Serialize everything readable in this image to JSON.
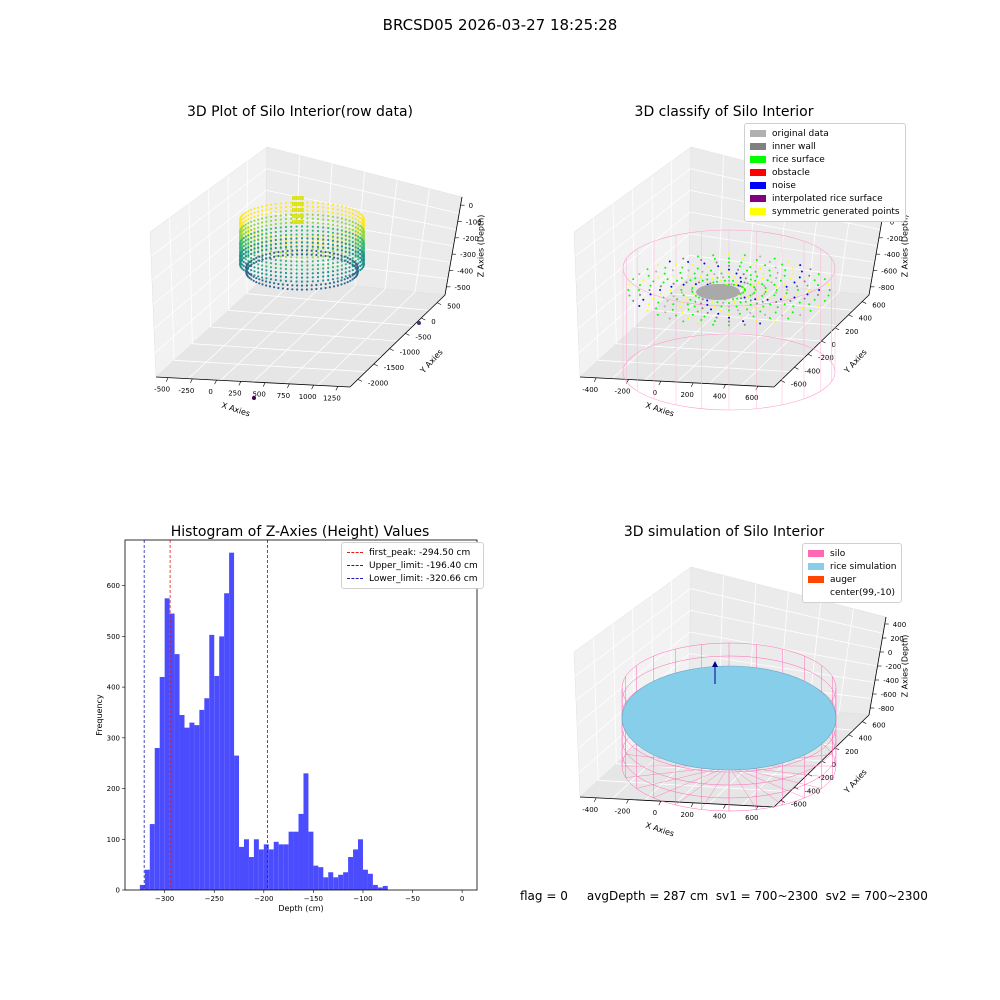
{
  "suptitle": "BRCSD05 2026-03-27 18:25:28",
  "footer": "flag = 0     avgDepth = 287 cm  sv1 = 700~2300  sv2 = 700~2300",
  "colors": {
    "hist_bar": "#4c4cff",
    "first_peak": "#e41a1c",
    "limits": "#1f1fb4",
    "silo": "#ff69b4",
    "rice": "#87ceeb",
    "auger": "#ff4500"
  },
  "chart_data": [
    {
      "type": "scatter",
      "title": "3D Plot of Silo Interior(row data)",
      "xlabel": "X Axies",
      "ylabel": "Y Axies",
      "zlabel": "Z Axies (Depth)",
      "x_ticks": [
        "-500",
        "-250",
        "0",
        "250",
        "500",
        "750",
        "1000",
        "1250"
      ],
      "y_ticks": [
        "500",
        "0",
        "-500",
        "-1000",
        "-1500",
        "-2000"
      ],
      "z_ticks": [
        "0",
        "-100",
        "-200",
        "-300",
        "-400",
        "-500"
      ],
      "colormap": "viridis"
    },
    {
      "type": "scatter",
      "title": "3D classify of Silo Interior",
      "xlabel": "X Axies",
      "ylabel": "Y Axies",
      "zlabel": "Z Axies (Depth)",
      "x_ticks": [
        "-400",
        "-200",
        "0",
        "200",
        "400",
        "600"
      ],
      "y_ticks": [
        "600",
        "400",
        "200",
        "0",
        "-200",
        "-400",
        "-600"
      ],
      "z_ticks": [
        "200",
        "0",
        "-200",
        "-400",
        "-600",
        "-800"
      ],
      "legend": [
        {
          "label": "original data",
          "color": "#b0b0b0"
        },
        {
          "label": "inner wall",
          "color": "#808080"
        },
        {
          "label": "rice surface",
          "color": "#00ff00"
        },
        {
          "label": "obstacle",
          "color": "#ff0000"
        },
        {
          "label": "noise",
          "color": "#0000ff"
        },
        {
          "label": "interpolated rice surface",
          "color": "#800080"
        },
        {
          "label": "symmetric generated points",
          "color": "#ffff00"
        }
      ]
    },
    {
      "type": "bar",
      "title": "Histogram of Z-Axies (Height) Values",
      "xlabel": "Depth (cm)",
      "ylabel": "Frequency",
      "xlim": [
        -340,
        15
      ],
      "ylim": [
        0,
        690
      ],
      "x_ticks": [
        -300,
        -250,
        -200,
        -150,
        -100,
        -50,
        0
      ],
      "y_ticks": [
        0,
        100,
        200,
        300,
        400,
        500,
        600
      ],
      "bin_start": -325,
      "bin_width": 5,
      "values": [
        10,
        40,
        130,
        280,
        420,
        575,
        545,
        465,
        345,
        320,
        330,
        325,
        355,
        378,
        503,
        422,
        500,
        585,
        665,
        265,
        85,
        100,
        65,
        100,
        80,
        90,
        80,
        95,
        90,
        90,
        115,
        115,
        150,
        230,
        115,
        48,
        45,
        25,
        35,
        25,
        30,
        35,
        65,
        80,
        100,
        40,
        32,
        10,
        5,
        8
      ],
      "lines": [
        {
          "label": "first_peak: -294.50 cm",
          "x": -294.5,
          "color": "#e41a1c"
        },
        {
          "label": "Upper_limit: -196.40 cm",
          "x": -196.4,
          "color": "#1f1fb4"
        },
        {
          "label": "Lower_limit: -320.66 cm",
          "x": -320.66,
          "color": "#1f1fb4"
        }
      ]
    },
    {
      "type": "scatter",
      "title": "3D simulation of Silo Interior",
      "xlabel": "X Axies",
      "ylabel": "Y Axies",
      "zlabel": "Z Axies (Depth)",
      "x_ticks": [
        "-400",
        "-200",
        "0",
        "200",
        "400",
        "600"
      ],
      "y_ticks": [
        "600",
        "400",
        "200",
        "0",
        "-200",
        "-400",
        "-600"
      ],
      "z_ticks": [
        "400",
        "200",
        "0",
        "-200",
        "-400",
        "-600",
        "-800"
      ],
      "legend": [
        {
          "label": "silo",
          "color": "#ff69b4"
        },
        {
          "label": "rice simulation",
          "color": "#87ceeb"
        },
        {
          "label": "auger",
          "color": "#ff4500"
        },
        {
          "label": "center(99,-10)",
          "color": ""
        }
      ]
    }
  ]
}
